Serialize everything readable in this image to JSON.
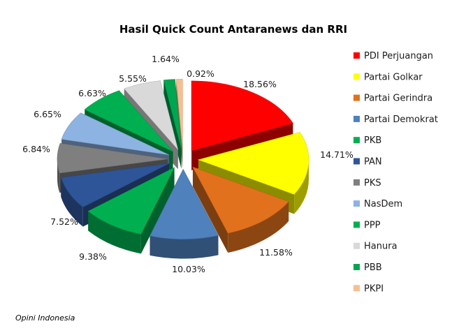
{
  "chart_data": {
    "type": "pie",
    "title": "Hasil Quick Count Antaranews dan RRI",
    "categories": [
      "PDI Perjuangan",
      "Partai Golkar",
      "Partai Gerindra",
      "Partai Demokrat",
      "PKB",
      "PAN",
      "PKS",
      "NasDem",
      "PPP",
      "Hanura",
      "PBB",
      "PKPI"
    ],
    "values": [
      18.56,
      14.71,
      11.58,
      10.03,
      9.38,
      7.52,
      6.84,
      6.65,
      6.63,
      5.55,
      1.64,
      0.92
    ],
    "value_labels": [
      "18.56%",
      "14.71%",
      "11.58%",
      "10.03%",
      "9.38%",
      "7.52%",
      "6.84%",
      "6.65%",
      "6.63%",
      "5.55%",
      "1.64%",
      "0.92%"
    ],
    "colors": [
      "#ff0000",
      "#ffff00",
      "#e2711d",
      "#4f81bd",
      "#00b050",
      "#2e5597",
      "#7f7f7f",
      "#8db3e2",
      "#00b050",
      "#d9d9d9",
      "#00a651",
      "#f6bf92"
    ],
    "legend_position": "right",
    "style": "3d-exploded"
  },
  "footer": "Opini Indonesia"
}
